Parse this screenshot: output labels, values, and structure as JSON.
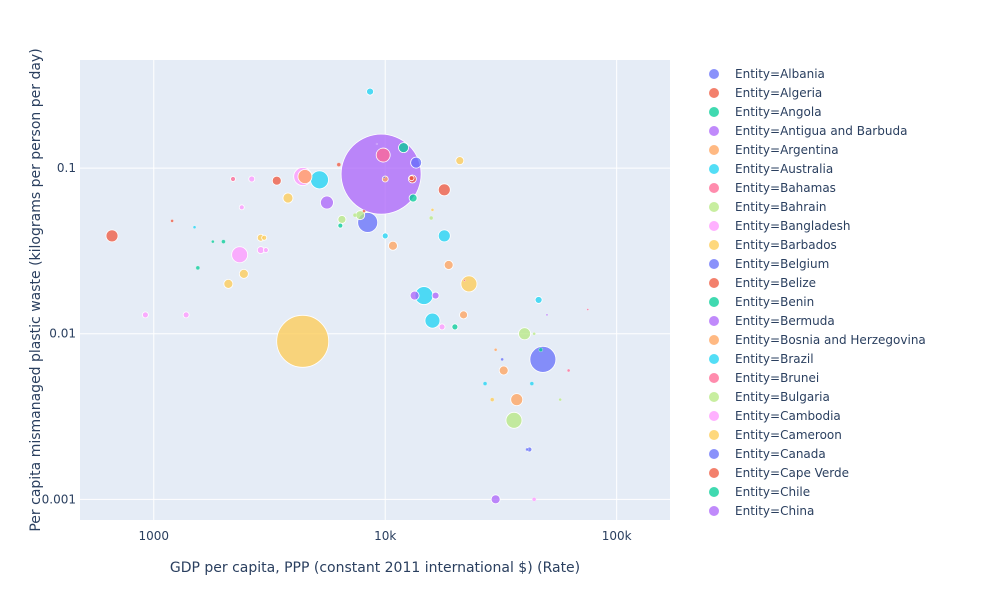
{
  "chart_data": {
    "type": "scatter",
    "xlabel": "GDP per capita, PPP (constant 2011 international $) (Rate)",
    "ylabel": "Per capita mismanaged plastic waste (kilograms per person per day)",
    "x_scale": "log",
    "y_scale": "log",
    "xlim": [
      480,
      170000
    ],
    "ylim": [
      0.00075,
      0.45
    ],
    "x_ticks": [
      1000,
      10000,
      100000
    ],
    "x_tick_labels": [
      "1000",
      "10k",
      "100k"
    ],
    "y_ticks": [
      0.001,
      0.01,
      0.1
    ],
    "y_tick_labels": [
      "0.001",
      "0.01",
      "0.1"
    ],
    "grid": true,
    "legend_position": "right",
    "plot_background": "#e5ecf6",
    "series": [
      {
        "name": "Entity=Albania",
        "color": "#636efa",
        "points": [
          [
            9900,
            0.088,
            2
          ]
        ]
      },
      {
        "name": "Entity=Algeria",
        "color": "#ef553b",
        "points": [
          [
            13000,
            0.087,
            5
          ]
        ]
      },
      {
        "name": "Entity=Angola",
        "color": "#00cc96",
        "points": [
          [
            6400,
            0.045,
            5
          ]
        ]
      },
      {
        "name": "Entity=Antigua and Barbuda",
        "color": "#ab63fa",
        "points": [
          [
            9200,
            0.14,
            1
          ]
        ]
      },
      {
        "name": "Entity=Argentina",
        "color": "#ffa15a",
        "points": [
          [
            18800,
            0.026,
            9
          ]
        ]
      },
      {
        "name": "Entity=Australia",
        "color": "#19d3f3",
        "points": [
          [
            43000,
            0.005,
            4
          ]
        ]
      },
      {
        "name": "Entity=Bahamas",
        "color": "#ff6692",
        "points": [
          [
            22000,
            0.021,
            2
          ]
        ]
      },
      {
        "name": "Entity=Bahrain",
        "color": "#b6e880",
        "points": [
          [
            44000,
            0.01,
            3
          ]
        ]
      },
      {
        "name": "Entity=Bangladesh",
        "color": "#ff97ff",
        "points": [
          [
            2900,
            0.032,
            7
          ]
        ]
      },
      {
        "name": "Entity=Barbados",
        "color": "#fecb52",
        "points": [
          [
            16000,
            0.056,
            3
          ]
        ]
      },
      {
        "name": "Entity=Belgium",
        "color": "#636efa",
        "points": [
          [
            41000,
            0.002,
            3
          ]
        ]
      },
      {
        "name": "Entity=Belize",
        "color": "#ef553b",
        "points": [
          [
            8100,
            0.055,
            3
          ]
        ]
      },
      {
        "name": "Entity=Benin",
        "color": "#00cc96",
        "points": [
          [
            2000,
            0.036,
            4
          ]
        ]
      },
      {
        "name": "Entity=Bermuda",
        "color": "#ab63fa",
        "points": [
          [
            50000,
            0.013,
            2
          ]
        ]
      },
      {
        "name": "Entity=Bosnia and Herzegovina",
        "color": "#ffa15a",
        "points": [
          [
            10000,
            0.086,
            6
          ]
        ]
      },
      {
        "name": "Entity=Brazil",
        "color": "#19d3f3",
        "points": [
          [
            14700,
            0.017,
            18
          ]
        ]
      },
      {
        "name": "Entity=Brunei",
        "color": "#ff6692",
        "points": [
          [
            75000,
            0.014,
            2
          ]
        ]
      },
      {
        "name": "Entity=Bulgaria",
        "color": "#b6e880",
        "points": [
          [
            15800,
            0.05,
            4
          ]
        ]
      },
      {
        "name": "Entity=Cambodia",
        "color": "#ff97ff",
        "points": [
          [
            2400,
            0.058,
            5
          ]
        ]
      },
      {
        "name": "Entity=Cameroon",
        "color": "#fecb52",
        "points": [
          [
            2900,
            0.038,
            7
          ]
        ]
      },
      {
        "name": "Entity=Canada",
        "color": "#636efa",
        "points": [
          [
            42000,
            0.002,
            5
          ]
        ]
      },
      {
        "name": "Entity=Cape Verde",
        "color": "#ef553b",
        "points": [
          [
            6300,
            0.105,
            4
          ]
        ]
      },
      {
        "name": "Entity=Chile",
        "color": "#00cc96",
        "points": [
          [
            20000,
            0.011,
            6
          ]
        ]
      },
      {
        "name": "Entity=China",
        "color": "#ab63fa",
        "points": [
          [
            13400,
            0.017,
            9
          ]
        ]
      }
    ],
    "extra_points": [
      {
        "color": "#19d3f3",
        "x": 8600,
        "y": 0.29,
        "size": 7
      },
      {
        "color": "#ab63fa",
        "x": 9600,
        "y": 0.092,
        "size": 80
      },
      {
        "color": "#fecb52",
        "x": 4400,
        "y": 0.009,
        "size": 52
      },
      {
        "color": "#636efa",
        "x": 8400,
        "y": 0.047,
        "size": 20
      },
      {
        "color": "#636efa",
        "x": 48000,
        "y": 0.007,
        "size": 26
      },
      {
        "color": "#ff6692",
        "x": 9800,
        "y": 0.12,
        "size": 14
      },
      {
        "color": "#00cc96",
        "x": 12000,
        "y": 0.133,
        "size": 10
      },
      {
        "color": "#636efa",
        "x": 13600,
        "y": 0.108,
        "size": 11
      },
      {
        "color": "#ef553b",
        "x": 18000,
        "y": 0.074,
        "size": 12
      },
      {
        "color": "#fecb52",
        "x": 21000,
        "y": 0.111,
        "size": 8
      },
      {
        "color": "#19d3f3",
        "x": 5200,
        "y": 0.085,
        "size": 18
      },
      {
        "color": "#ffa15a",
        "x": 4500,
        "y": 0.089,
        "size": 14
      },
      {
        "color": "#ff97ff",
        "x": 4400,
        "y": 0.089,
        "size": 18
      },
      {
        "color": "#ab63fa",
        "x": 5600,
        "y": 0.062,
        "size": 13
      },
      {
        "color": "#b6e880",
        "x": 6500,
        "y": 0.049,
        "size": 8
      },
      {
        "color": "#b6e880",
        "x": 7800,
        "y": 0.052,
        "size": 9
      },
      {
        "color": "#00cc96",
        "x": 13200,
        "y": 0.066,
        "size": 8
      },
      {
        "color": "#ef553b",
        "x": 13100,
        "y": 0.086,
        "size": 8
      },
      {
        "color": "#ef553b",
        "x": 3400,
        "y": 0.084,
        "size": 9
      },
      {
        "color": "#ff6692",
        "x": 2200,
        "y": 0.086,
        "size": 5
      },
      {
        "color": "#ff97ff",
        "x": 2650,
        "y": 0.086,
        "size": 6
      },
      {
        "color": "#fecb52",
        "x": 3800,
        "y": 0.066,
        "size": 10
      },
      {
        "color": "#ff97ff",
        "x": 2350,
        "y": 0.03,
        "size": 16
      },
      {
        "color": "#fecb52",
        "x": 2450,
        "y": 0.023,
        "size": 9
      },
      {
        "color": "#fecb52",
        "x": 2100,
        "y": 0.02,
        "size": 9
      },
      {
        "color": "#ef553b",
        "x": 660,
        "y": 0.039,
        "size": 12
      },
      {
        "color": "#00cc96",
        "x": 1550,
        "y": 0.025,
        "size": 4
      },
      {
        "color": "#ff97ff",
        "x": 920,
        "y": 0.013,
        "size": 6
      },
      {
        "color": "#ff97ff",
        "x": 1380,
        "y": 0.013,
        "size": 6
      },
      {
        "color": "#ef553b",
        "x": 1200,
        "y": 0.048,
        "size": 3
      },
      {
        "color": "#19d3f3",
        "x": 1500,
        "y": 0.044,
        "size": 3
      },
      {
        "color": "#19d3f3",
        "x": 10000,
        "y": 0.039,
        "size": 6
      },
      {
        "color": "#ffa15a",
        "x": 10800,
        "y": 0.034,
        "size": 9
      },
      {
        "color": "#19d3f3",
        "x": 18000,
        "y": 0.039,
        "size": 12
      },
      {
        "color": "#fecb52",
        "x": 23000,
        "y": 0.02,
        "size": 16
      },
      {
        "color": "#ab63fa",
        "x": 16500,
        "y": 0.017,
        "size": 7
      },
      {
        "color": "#19d3f3",
        "x": 16000,
        "y": 0.012,
        "size": 15
      },
      {
        "color": "#ff97ff",
        "x": 17600,
        "y": 0.011,
        "size": 6
      },
      {
        "color": "#ffa15a",
        "x": 21800,
        "y": 0.013,
        "size": 8
      },
      {
        "color": "#19d3f3",
        "x": 46000,
        "y": 0.016,
        "size": 7
      },
      {
        "color": "#b6e880",
        "x": 40000,
        "y": 0.01,
        "size": 12
      },
      {
        "color": "#ffa15a",
        "x": 32500,
        "y": 0.006,
        "size": 9
      },
      {
        "color": "#ffa15a",
        "x": 37000,
        "y": 0.004,
        "size": 12
      },
      {
        "color": "#b6e880",
        "x": 36000,
        "y": 0.003,
        "size": 16
      },
      {
        "color": "#ab63fa",
        "x": 30000,
        "y": 0.001,
        "size": 9
      },
      {
        "color": "#00cc96",
        "x": 47000,
        "y": 0.008,
        "size": 4
      },
      {
        "color": "#fecb52",
        "x": 29000,
        "y": 0.004,
        "size": 4
      },
      {
        "color": "#19d3f3",
        "x": 27000,
        "y": 0.005,
        "size": 4
      },
      {
        "color": "#ffa15a",
        "x": 30000,
        "y": 0.008,
        "size": 3
      },
      {
        "color": "#636efa",
        "x": 32000,
        "y": 0.007,
        "size": 3
      },
      {
        "color": "#ff97ff",
        "x": 44000,
        "y": 0.001,
        "size": 4
      },
      {
        "color": "#ff6692",
        "x": 62000,
        "y": 0.006,
        "size": 3
      },
      {
        "color": "#b6e880",
        "x": 57000,
        "y": 0.004,
        "size": 3
      },
      {
        "color": "#fecb52",
        "x": 3000,
        "y": 0.038,
        "size": 5
      },
      {
        "color": "#ff97ff",
        "x": 3050,
        "y": 0.032,
        "size": 5
      },
      {
        "color": "#b6e880",
        "x": 7400,
        "y": 0.052,
        "size": 4
      },
      {
        "color": "#00cc96",
        "x": 1800,
        "y": 0.036,
        "size": 3
      }
    ]
  }
}
